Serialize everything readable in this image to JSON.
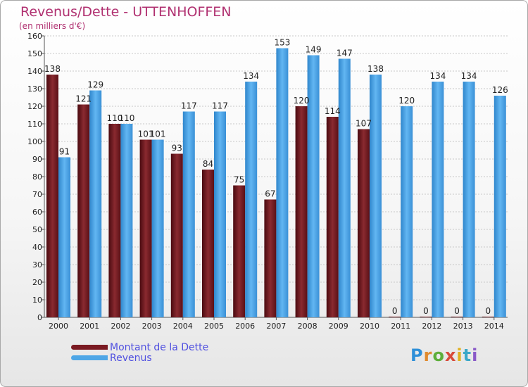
{
  "header": {
    "title": "Revenus/Dette - UTTENHOFFEN",
    "subtitle": "(en milliers d'€)"
  },
  "legend": {
    "items": [
      {
        "label": "Montant de la Dette",
        "color": "#7a1a22"
      },
      {
        "label": "Revenus",
        "color": "#4ea6e6"
      }
    ]
  },
  "logo": {
    "text": "Proxiti"
  },
  "chart_data": {
    "type": "bar",
    "categories": [
      "2000",
      "2001",
      "2002",
      "2003",
      "2004",
      "2005",
      "2006",
      "2007",
      "2008",
      "2009",
      "2010",
      "2011",
      "2012",
      "2013",
      "2014"
    ],
    "series": [
      {
        "name": "Montant de la Dette",
        "color": "#7a1a22",
        "values": [
          138,
          121,
          110,
          101,
          93,
          84,
          75,
          67,
          120,
          114,
          107,
          0,
          0,
          0,
          0
        ],
        "labels": [
          "138",
          "121",
          "110",
          "101",
          "93",
          "84",
          "75",
          "67",
          "120",
          "114",
          "107",
          "0",
          "0",
          "0",
          "0"
        ]
      },
      {
        "name": "Revenus",
        "color": "#4ea6e6",
        "values": [
          91,
          129,
          110,
          101,
          117,
          117,
          134,
          153,
          149,
          147,
          138,
          120,
          134,
          134,
          126
        ],
        "labels": [
          "91",
          "129",
          "110",
          "101",
          "117",
          "117",
          "134",
          "153",
          "149",
          "147",
          "138",
          "120",
          "134",
          "134",
          "126"
        ]
      }
    ],
    "ylim": [
      0,
      160
    ],
    "yticks": [
      0,
      10,
      20,
      30,
      40,
      50,
      60,
      70,
      80,
      90,
      100,
      110,
      120,
      130,
      140,
      150,
      160
    ],
    "grid": true,
    "legend_position": "bottom-left"
  }
}
